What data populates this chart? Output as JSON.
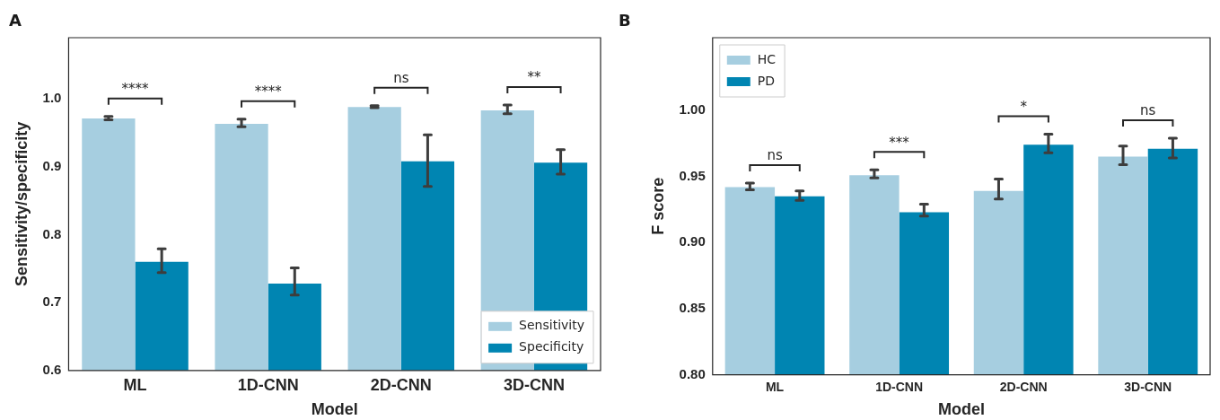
{
  "chart_data": [
    {
      "type": "bar",
      "xlabel": "Model",
      "ylabel": "Sensitivity/specificity",
      "categories": [
        "ML",
        "1D-CNN",
        "2D-CNN",
        "3D-CNN"
      ],
      "series": [
        {
          "name": "Sensitivity",
          "color": "#a6cee0",
          "values": [
            0.971,
            0.963,
            0.988,
            0.983
          ],
          "errors": [
            [
              0.969,
              0.974
            ],
            [
              0.959,
              0.97
            ],
            [
              0.987,
              0.99
            ],
            [
              0.978,
              0.991
            ]
          ]
        },
        {
          "name": "Specificity",
          "color": "#0085b2",
          "values": [
            0.76,
            0.728,
            0.908,
            0.906
          ],
          "errors": [
            [
              0.744,
              0.779
            ],
            [
              0.711,
              0.751
            ],
            [
              0.871,
              0.947
            ],
            [
              0.889,
              0.925
            ]
          ]
        }
      ],
      "ylim": [
        0.6,
        1.09
      ],
      "yticks": [
        0.6,
        0.7,
        0.8,
        0.9,
        {
          "value": 1.0,
          "label": "1.0"
        }
      ],
      "grid": false,
      "legend": "bottom right",
      "annotations": [
        "A",
        "****",
        "****",
        "ns",
        "**"
      ]
    },
    {
      "type": "bar",
      "xlabel": "Model",
      "ylabel": "F score",
      "categories": [
        "ML",
        "1D-CNN",
        "2D-CNN",
        "3D-CNN"
      ],
      "series": [
        {
          "name": "HC",
          "color": "#a6cee0",
          "values": [
            0.942,
            0.951,
            0.939,
            0.965
          ],
          "errors": [
            [
              0.94,
              0.945
            ],
            [
              0.949,
              0.955
            ],
            [
              0.933,
              0.948
            ],
            [
              0.959,
              0.973
            ]
          ]
        },
        {
          "name": "PD",
          "color": "#0085b2",
          "values": [
            0.935,
            0.923,
            0.974,
            0.971
          ],
          "errors": [
            [
              0.932,
              0.939
            ],
            [
              0.92,
              0.929
            ],
            [
              0.968,
              0.982
            ],
            [
              0.964,
              0.979
            ]
          ]
        }
      ],
      "ylim": [
        0.8,
        1.055
      ],
      "yticks": [
        {
          "value": 0.8,
          "label": "0.80"
        },
        {
          "value": 0.85,
          "label": "0.85"
        },
        {
          "value": 0.9,
          "label": "0.90"
        },
        {
          "value": 0.95,
          "label": "0.95"
        },
        {
          "value": 1.0,
          "label": "1.00"
        }
      ],
      "grid": false,
      "legend": "top left",
      "annotations": [
        "B",
        "ns",
        "***",
        "*",
        "ns"
      ]
    }
  ]
}
